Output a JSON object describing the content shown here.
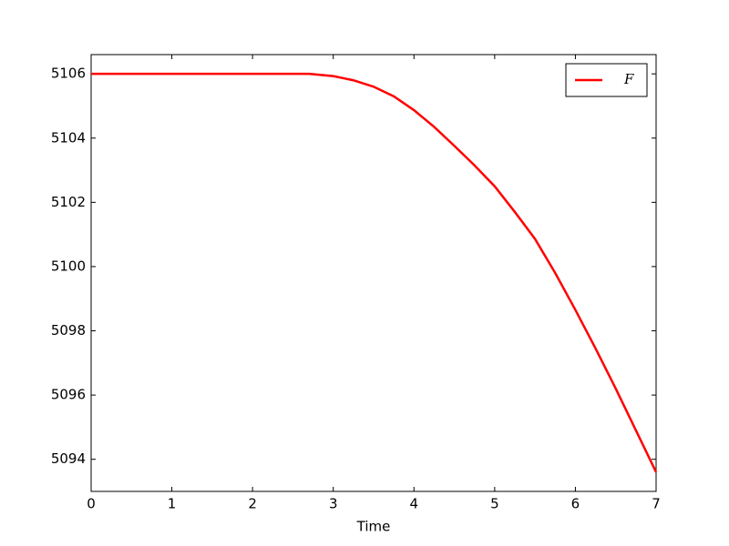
{
  "chart_data": {
    "type": "line",
    "xlabel": "Time",
    "x": [
      0,
      1,
      2,
      2.7,
      3,
      3.25,
      3.5,
      3.75,
      4,
      4.25,
      4.5,
      4.75,
      5,
      5.25,
      5.5,
      5.75,
      6,
      6.25,
      6.5,
      6.75,
      7
    ],
    "series": [
      {
        "name": "F",
        "color": "#ff0000",
        "values": [
          5106,
          5106,
          5106,
          5106,
          5105.93,
          5105.8,
          5105.6,
          5105.3,
          5104.87,
          5104.35,
          5103.76,
          5103.15,
          5102.5,
          5101.7,
          5100.86,
          5099.8,
          5098.65,
          5097.45,
          5096.2,
          5094.9,
          5093.6
        ]
      }
    ],
    "xlim": [
      0,
      7
    ],
    "xticks": [
      0,
      1,
      2,
      3,
      4,
      5,
      6,
      7
    ],
    "ylim": [
      5093,
      5106.6
    ],
    "yticks": [
      5094,
      5096,
      5098,
      5100,
      5102,
      5104,
      5106
    ],
    "grid": false,
    "legend": "upper right"
  }
}
